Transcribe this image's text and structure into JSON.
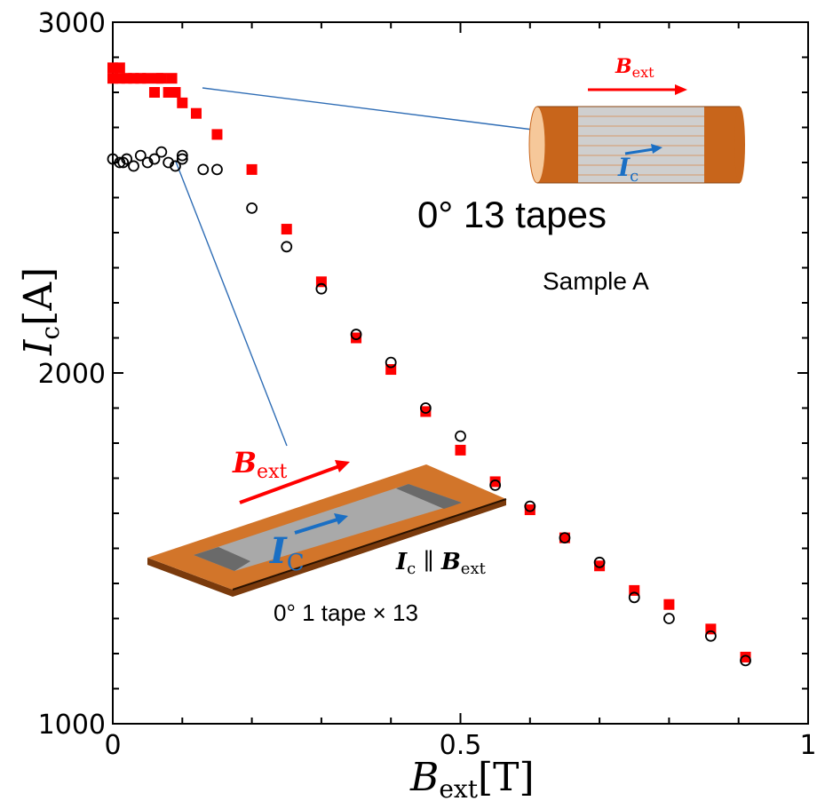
{
  "chart_data": {
    "type": "scatter",
    "title": "",
    "xlabel": {
      "main": "B",
      "sub": "ext",
      "unit": "[T]"
    },
    "ylabel": {
      "main": "I",
      "sub": "c",
      "unit": "[A]"
    },
    "xlim": [
      0,
      1
    ],
    "ylim": [
      1000,
      3000
    ],
    "xticks": [
      0,
      0.5,
      1
    ],
    "xtick_labels": [
      "0",
      "0.5",
      "1"
    ],
    "yticks": [
      1000,
      2000,
      3000
    ],
    "ytick_labels": [
      "1000",
      "2000",
      "3000"
    ],
    "grid": false,
    "series": [
      {
        "marker": "filled-square",
        "color": "#ff0000",
        "x": [
          0,
          0,
          0.01,
          0.01,
          0.02,
          0.03,
          0.04,
          0.05,
          0.06,
          0.065,
          0.07,
          0.08,
          0.085,
          0.09,
          0.1,
          0.12,
          0.15,
          0.2,
          0.25,
          0.3,
          0.35,
          0.4,
          0.45,
          0.5,
          0.55,
          0.6,
          0.65,
          0.7,
          0.75,
          0.8,
          0.86,
          0.91
        ],
        "y": [
          2870,
          2840,
          2870,
          2840,
          2840,
          2840,
          2840,
          2840,
          2800,
          2840,
          2840,
          2800,
          2840,
          2800,
          2770,
          2740,
          2680,
          2580,
          2410,
          2260,
          2100,
          2010,
          1890,
          1780,
          1690,
          1610,
          1530,
          1450,
          1380,
          1340,
          1270,
          1190
        ]
      },
      {
        "marker": "open-circle",
        "color": "#000000",
        "x": [
          0,
          0.01,
          0.015,
          0.02,
          0.03,
          0.04,
          0.05,
          0.06,
          0.07,
          0.08,
          0.09,
          0.1,
          0.1,
          0.13,
          0.15,
          0.2,
          0.25,
          0.3,
          0.35,
          0.4,
          0.45,
          0.5,
          0.55,
          0.6,
          0.65,
          0.7,
          0.75,
          0.8,
          0.86,
          0.91
        ],
        "y": [
          2610,
          2600,
          2600,
          2610,
          2590,
          2620,
          2600,
          2610,
          2630,
          2600,
          2590,
          2610,
          2620,
          2580,
          2580,
          2470,
          2360,
          2240,
          2110,
          2030,
          1900,
          1820,
          1680,
          1620,
          1530,
          1460,
          1360,
          1300,
          1250,
          1180
        ]
      }
    ],
    "annotations": {
      "top_label": "0° 13 tapes",
      "sample_label": "Sample A",
      "top_bfield": {
        "main": "B",
        "sub": "ext"
      },
      "top_current": {
        "main": "I",
        "sub": "c"
      },
      "bottom_bfield": {
        "main": "B",
        "sub": "ext"
      },
      "bottom_current": {
        "main": "I",
        "sub": "C"
      },
      "parallel_label": {
        "a": "I",
        "a_sub": "c",
        "sep": " ∥ ",
        "b": "B",
        "b_sub": "ext"
      },
      "bottom_caption": "0° 1 tape × 13"
    },
    "colors": {
      "red": "#ff0000",
      "blue": "#1a6fc4",
      "copper": "#c8651b",
      "leader": "#2f6db5"
    }
  }
}
